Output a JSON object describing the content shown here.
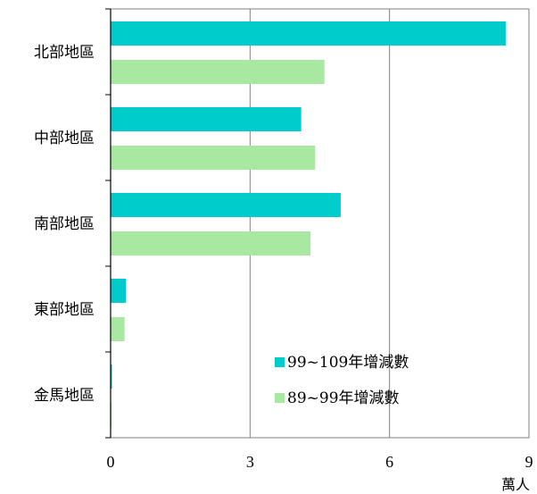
{
  "chart_data": {
    "type": "bar",
    "orientation": "horizontal",
    "categories": [
      "北部地區",
      "中部地區",
      "南部地區",
      "東部地區",
      "金馬地區"
    ],
    "series": [
      {
        "name": "99~109年增減數",
        "color": "#00cccc",
        "values": [
          8.5,
          4.1,
          4.95,
          0.33,
          0.03
        ]
      },
      {
        "name": "89~99年增減數",
        "color": "#a8e8a0",
        "values": [
          4.6,
          4.4,
          4.3,
          0.3,
          0.02
        ]
      }
    ],
    "xlim": [
      0,
      9
    ],
    "xticks": [
      "0",
      "3",
      "6",
      "9"
    ],
    "xlabel": "萬人",
    "grid": "vertical",
    "legend_position": "bottom-right-inside"
  }
}
